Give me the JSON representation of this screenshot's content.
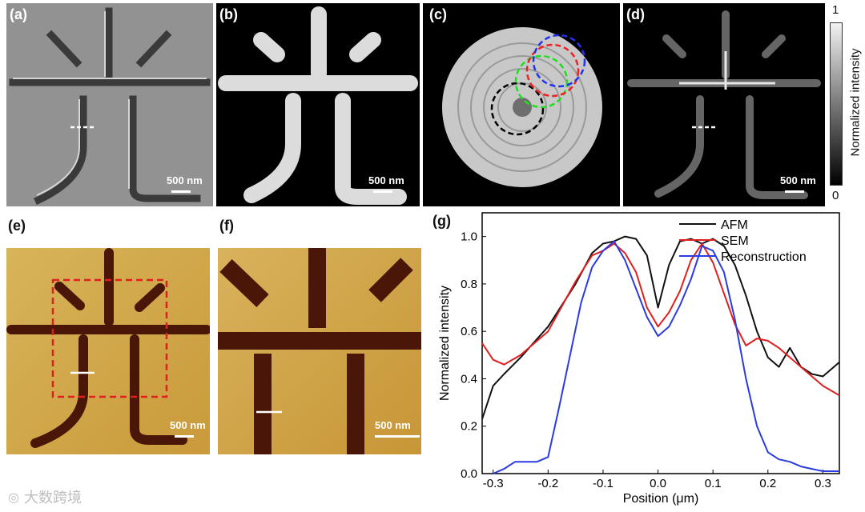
{
  "panels": {
    "a": {
      "label": "(a)",
      "scale": "500 nm"
    },
    "b": {
      "label": "(b)",
      "scale": "500 nm"
    },
    "c": {
      "label": "(c)"
    },
    "d": {
      "label": "(d)",
      "scale": "500 nm"
    },
    "e": {
      "label": "(e)",
      "scale": "500 nm"
    },
    "f": {
      "label": "(f)",
      "scale": "500 nm"
    },
    "g": {
      "label": "(g)"
    }
  },
  "colorbar": {
    "label": "Normalized intensity",
    "max": "1",
    "min": "0"
  },
  "watermark": {
    "text": "大数跨境"
  },
  "colors": {
    "afm": "#111111",
    "sem": "#e02020",
    "reconstruction": "#2a3be0",
    "afm_map": "#c99a3a"
  },
  "chart_data": {
    "type": "line",
    "xlabel": "Position (μm)",
    "ylabel": "Normalized intensity",
    "xlim": [
      -0.32,
      0.33
    ],
    "ylim": [
      0.0,
      1.1
    ],
    "xticks": [
      -0.3,
      -0.2,
      -0.1,
      0.0,
      0.1,
      0.2,
      0.3
    ],
    "yticks": [
      0.0,
      0.2,
      0.4,
      0.6,
      0.8,
      1.0
    ],
    "xtick_labels": [
      "-0.3",
      "-0.2",
      "-0.1",
      "0.0",
      "0.1",
      "0.2",
      "0.3"
    ],
    "ytick_labels": [
      "0.0",
      "0.2",
      "0.4",
      "0.6",
      "0.8",
      "1.0"
    ],
    "legend_position": "top-right",
    "series": [
      {
        "name": "AFM",
        "color": "#111111",
        "x": [
          -0.32,
          -0.3,
          -0.28,
          -0.25,
          -0.2,
          -0.15,
          -0.12,
          -0.1,
          -0.08,
          -0.06,
          -0.04,
          -0.02,
          0.0,
          0.02,
          0.04,
          0.06,
          0.08,
          0.1,
          0.12,
          0.14,
          0.16,
          0.18,
          0.2,
          0.22,
          0.24,
          0.26,
          0.28,
          0.3,
          0.33
        ],
        "y": [
          0.23,
          0.37,
          0.42,
          0.49,
          0.62,
          0.8,
          0.93,
          0.97,
          0.98,
          1.0,
          0.99,
          0.92,
          0.7,
          0.88,
          0.98,
          0.99,
          0.97,
          0.99,
          0.96,
          0.88,
          0.75,
          0.6,
          0.49,
          0.45,
          0.53,
          0.45,
          0.42,
          0.41,
          0.47
        ]
      },
      {
        "name": "SEM",
        "color": "#e02020",
        "x": [
          -0.32,
          -0.3,
          -0.28,
          -0.25,
          -0.2,
          -0.15,
          -0.12,
          -0.1,
          -0.08,
          -0.06,
          -0.04,
          -0.02,
          0.0,
          0.02,
          0.04,
          0.06,
          0.08,
          0.1,
          0.12,
          0.14,
          0.16,
          0.18,
          0.2,
          0.22,
          0.24,
          0.26,
          0.28,
          0.3,
          0.33
        ],
        "y": [
          0.55,
          0.48,
          0.46,
          0.5,
          0.6,
          0.81,
          0.92,
          0.94,
          0.97,
          0.93,
          0.85,
          0.7,
          0.62,
          0.68,
          0.77,
          0.9,
          0.97,
          0.89,
          0.76,
          0.63,
          0.54,
          0.57,
          0.56,
          0.53,
          0.49,
          0.45,
          0.41,
          0.37,
          0.33
        ]
      },
      {
        "name": "Reconstruction",
        "color": "#2a3be0",
        "x": [
          -0.3,
          -0.28,
          -0.26,
          -0.24,
          -0.22,
          -0.2,
          -0.18,
          -0.16,
          -0.14,
          -0.12,
          -0.1,
          -0.08,
          -0.06,
          -0.04,
          -0.02,
          0.0,
          0.02,
          0.04,
          0.06,
          0.08,
          0.1,
          0.12,
          0.14,
          0.16,
          0.18,
          0.2,
          0.22,
          0.24,
          0.26,
          0.28,
          0.3,
          0.33
        ],
        "y": [
          0.0,
          0.02,
          0.05,
          0.05,
          0.05,
          0.07,
          0.28,
          0.5,
          0.72,
          0.87,
          0.94,
          0.98,
          0.9,
          0.78,
          0.66,
          0.58,
          0.62,
          0.71,
          0.82,
          0.96,
          0.94,
          0.85,
          0.65,
          0.4,
          0.2,
          0.09,
          0.06,
          0.05,
          0.03,
          0.02,
          0.01,
          0.01
        ]
      }
    ]
  }
}
